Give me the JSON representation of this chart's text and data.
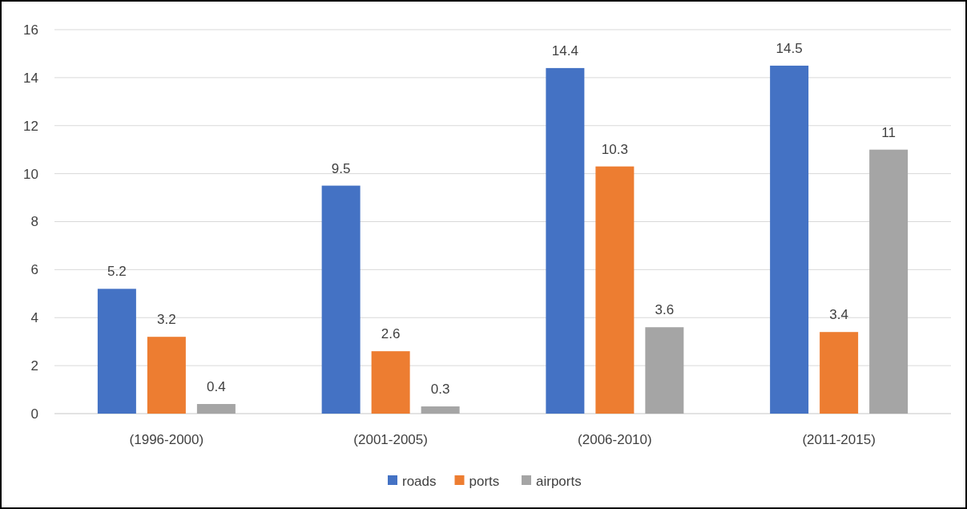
{
  "chart_data": {
    "type": "bar",
    "categories": [
      "(1996-2000)",
      "(2001-2005)",
      "(2006-2010)",
      "(2011-2015)"
    ],
    "series": [
      {
        "name": "roads",
        "color": "#4472c4",
        "values": [
          5.2,
          9.5,
          14.4,
          14.5
        ]
      },
      {
        "name": "ports",
        "color": "#ed7d31",
        "values": [
          3.2,
          2.6,
          10.3,
          3.4
        ]
      },
      {
        "name": "airports",
        "color": "#a5a5a5",
        "values": [
          0.4,
          0.3,
          3.6,
          11
        ]
      }
    ],
    "ylim": [
      0,
      16
    ],
    "yticks": [
      0,
      2,
      4,
      6,
      8,
      10,
      12,
      14,
      16
    ],
    "grid": "y",
    "legend": "bottom",
    "data_labels": true
  }
}
